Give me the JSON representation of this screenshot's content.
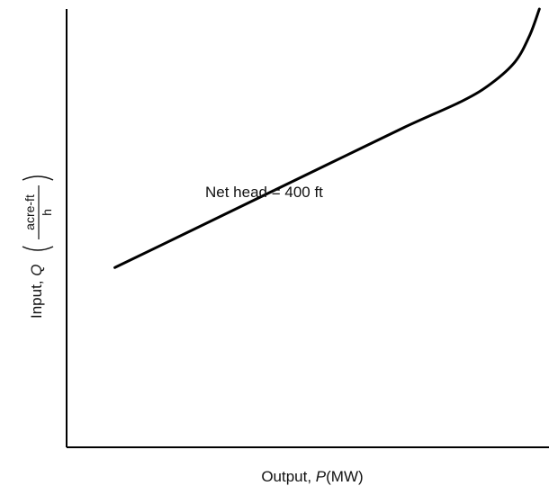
{
  "chart_data": {
    "type": "line",
    "xlabel_prefix": "Output, ",
    "xlabel_var": "P",
    "xlabel_unit": "(MW)",
    "ylabel_prefix": "Input, ",
    "ylabel_var": "Q",
    "ylabel_unit_num": "acre-ft",
    "ylabel_unit_den": "h",
    "ticks_shown": false,
    "grid": false,
    "xlim": [
      0,
      10
    ],
    "ylim": [
      0,
      10
    ],
    "annotation": "Net head = 400 ft",
    "series": [
      {
        "x": [
          1.0,
          2.5,
          4.0,
          5.5,
          7.0,
          8.2,
          8.8,
          9.3,
          9.6,
          9.8
        ],
        "y": [
          4.1,
          4.9,
          5.7,
          6.5,
          7.3,
          7.9,
          8.3,
          8.8,
          9.4,
          10.0
        ],
        "color": "#000000"
      }
    ]
  }
}
